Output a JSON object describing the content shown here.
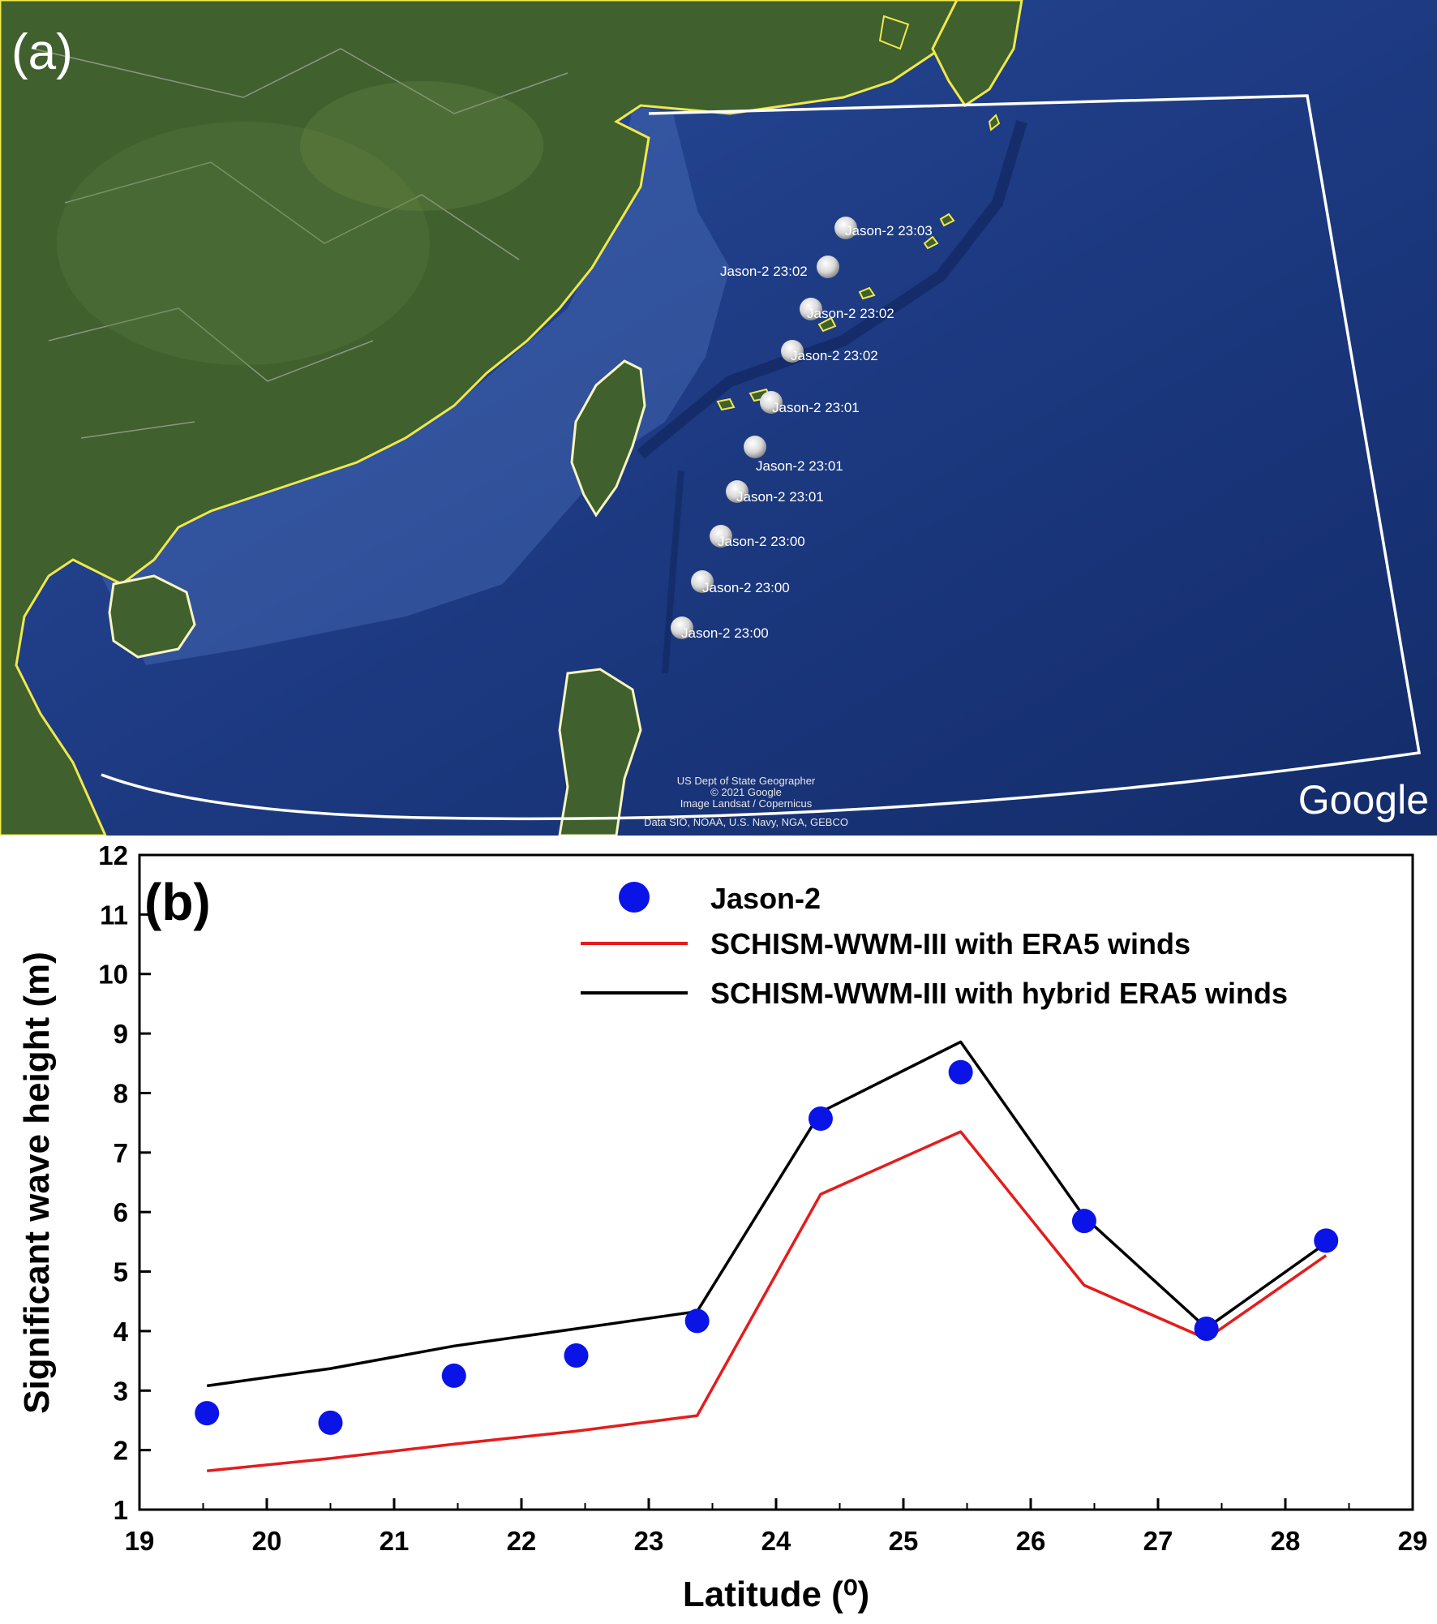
{
  "map": {
    "panel_label": "(a)",
    "attribution": [
      "US Dept of State Geographer",
      "© 2021 Google",
      "Image Landsat / Copernicus",
      "Data SIO, NOAA, U.S. Navy, NGA, GEBCO"
    ],
    "watermark": "Google",
    "markers": [
      {
        "label": "Jason-2 23:03"
      },
      {
        "label": "Jason-2 23:02"
      },
      {
        "label": "Jason-2 23:02"
      },
      {
        "label": "Jason-2 23:02"
      },
      {
        "label": "Jason-2 23:01"
      },
      {
        "label": "Jason-2 23:01"
      },
      {
        "label": "Jason-2 23:01"
      },
      {
        "label": "Jason-2 23:00"
      },
      {
        "label": "Jason-2 23:00"
      },
      {
        "label": "Jason-2 23:00"
      }
    ],
    "colors": {
      "ocean": "#1f3f86",
      "land": "#3d5a2a",
      "coastline": "#f0e84a",
      "domain_box": "#ffffff"
    }
  },
  "chart": {
    "panel_label": "(b)"
  },
  "chart_data": {
    "type": "line",
    "xlabel": "Latitude (⁰)",
    "ylabel": "Significant wave height (m)",
    "xlim": [
      19,
      29
    ],
    "ylim": [
      1,
      12
    ],
    "xticks": [
      "19",
      "20",
      "21",
      "22",
      "23",
      "24",
      "25",
      "26",
      "27",
      "28",
      "29"
    ],
    "yticks": [
      "1",
      "2",
      "3",
      "4",
      "5",
      "6",
      "7",
      "8",
      "9",
      "10",
      "11",
      "12"
    ],
    "legend_position": "top-right",
    "x": [
      19.53,
      20.5,
      21.47,
      22.43,
      23.38,
      24.35,
      25.45,
      26.42,
      27.38,
      28.32
    ],
    "series": [
      {
        "name": "Jason-2",
        "style": "markers",
        "color": "#0a14e6",
        "values": [
          2.62,
          2.46,
          3.25,
          3.59,
          4.17,
          7.57,
          8.35,
          5.85,
          4.04,
          5.52
        ]
      },
      {
        "name": "SCHISM-WWM-III with ERA5 winds",
        "style": "line",
        "color": "#e41c1c",
        "values": [
          1.65,
          1.86,
          2.1,
          2.32,
          2.58,
          6.3,
          7.35,
          4.77,
          3.87,
          5.27
        ]
      },
      {
        "name": "SCHISM-WWM-III with hybrid ERA5 winds",
        "style": "line",
        "color": "#000000",
        "values": [
          3.08,
          3.37,
          3.75,
          4.04,
          4.33,
          7.68,
          8.86,
          5.92,
          4.05,
          5.48
        ]
      }
    ]
  }
}
